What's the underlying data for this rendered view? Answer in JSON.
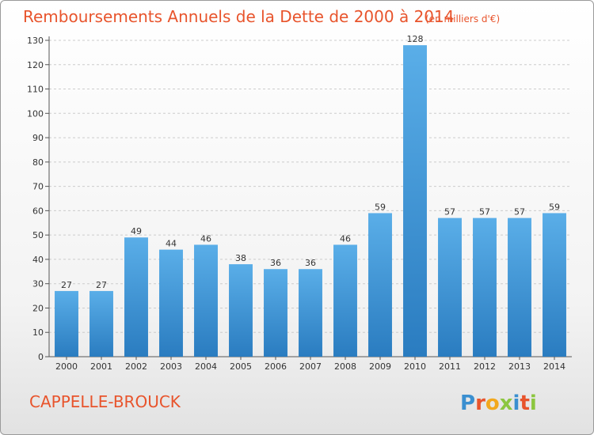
{
  "chart_data": {
    "type": "bar",
    "title": "Remboursements Annuels de la Dette de 2000 à 2014",
    "subtitle": "(en milliers d'€)",
    "categories": [
      "2000",
      "2001",
      "2002",
      "2003",
      "2004",
      "2005",
      "2006",
      "2007",
      "2008",
      "2009",
      "2010",
      "2011",
      "2012",
      "2013",
      "2014"
    ],
    "values": [
      27,
      27,
      49,
      44,
      46,
      38,
      36,
      36,
      46,
      59,
      128,
      57,
      57,
      57,
      59
    ],
    "ylim": [
      0,
      130
    ],
    "yticks": [
      0,
      10,
      20,
      30,
      40,
      50,
      60,
      70,
      80,
      90,
      100,
      110,
      120,
      130
    ],
    "grid": true,
    "xlabel": "",
    "ylabel": ""
  },
  "commune": "CAPPELLE-BROUCK",
  "brand": {
    "letters": [
      "P",
      "r",
      "o",
      "x",
      "i",
      "t",
      "i"
    ],
    "colors": [
      "#3a8fd0",
      "#e8542c",
      "#f2a81d",
      "#8cc63f",
      "#3a8fd0",
      "#e8542c",
      "#8cc63f"
    ]
  },
  "colors": {
    "bar_light": "#5aaee8",
    "bar_dark": "#2a7cc0",
    "grid": "#cccccc",
    "title": "#e8542c"
  }
}
